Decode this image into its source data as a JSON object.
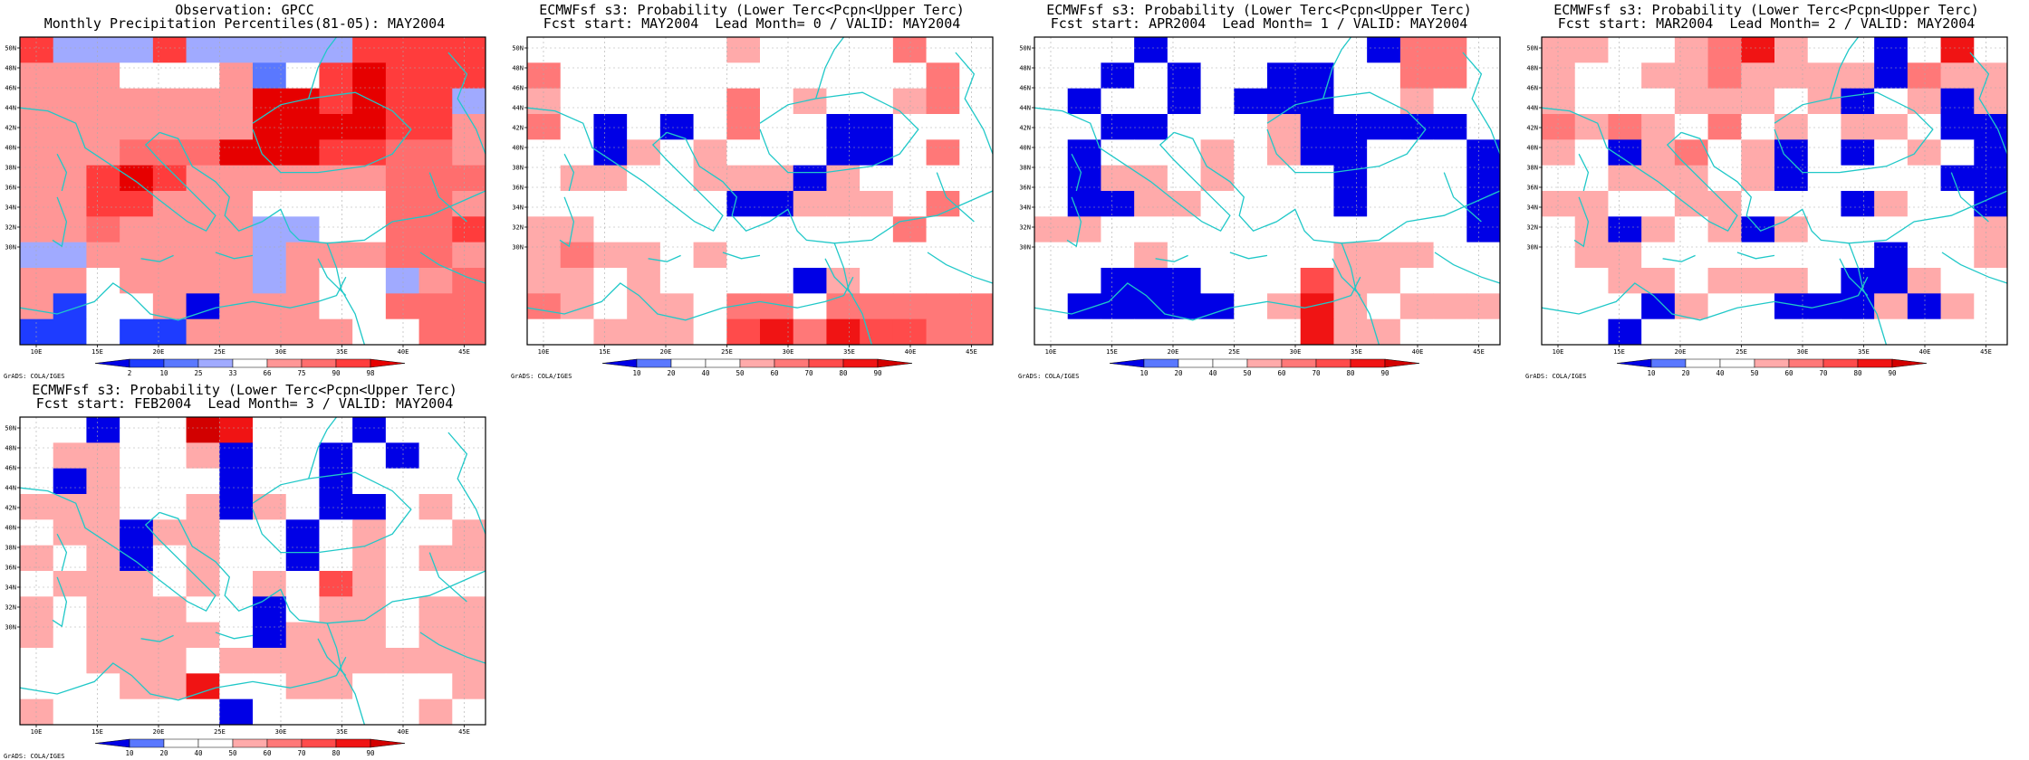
{
  "lat_labels": [
    "50N",
    "48N",
    "46N",
    "44N",
    "42N",
    "40N",
    "38N",
    "36N",
    "34N",
    "32N",
    "30N"
  ],
  "lon_labels": [
    "10E",
    "15E",
    "20E",
    "25E",
    "30E",
    "35E",
    "40E",
    "45E"
  ],
  "credit": "GrADS: COLA/IGES",
  "colors": {
    "coast": "#20c8c8",
    "grid": "#aaaaaa",
    "obs_levels": [
      "#0000e6",
      "#1e3cff",
      "#5a78ff",
      "#a0aaff",
      "#ffffff",
      "#ff9696",
      "#ff6e6e",
      "#ff3c3c",
      "#e60000"
    ],
    "prob_levels": [
      "#0000e6",
      "#5a78ff",
      "#ffffff",
      "#ffffff",
      "#ffaaaa",
      "#ff7878",
      "#ff4b4b",
      "#f01414",
      "#d20000"
    ]
  },
  "panels": [
    {
      "id": "obs",
      "title_line1": "Observation: GPCC",
      "title_line2": "Monthly Precipitation Percentiles(81-05): MAY2004",
      "colorbar_labels": [
        "2",
        "10",
        "25",
        "33",
        "66",
        "75",
        "90",
        "98"
      ],
      "grid_rows": [
        "73337333337777",
        "55544452478777",
        "55555558878773",
        "55555558888775",
        "55566688877665",
        "55787555555666",
        "55775554444665",
        "55655553344667",
        "33555553555665",
        "55455553544356",
        "51445055544666",
        "11411555554466"
      ]
    },
    {
      "id": "lead0",
      "title_line1": "ECMWFsf s3: Probability (Lower Terc<Pcpn<Upper Terc)",
      "title_line2": "Fcst start: MAY2004  Lead Month= 0 / VALID: MAY2004",
      "colorbar_labels": [
        "10",
        "20",
        "40",
        "50",
        "60",
        "70",
        "80",
        "90"
      ],
      "grid_rows": [
        "33232243323533",
        "53332333333353",
        "43332353422453",
        "52020253300233",
        "33043433300353",
        "34432444043333",
        "33333300444353",
        "44332233332533",
        "45443433233333",
        "44343333043333",
        "54344355355555",
        "33444367576655"
      ]
    },
    {
      "id": "lead1",
      "title_line1": "ECMWFsf s3: Probability (Lower Terc<Pcpn<Upper Terc)",
      "title_line2": "Fcst start: APR2004  Lead Month= 1 / VALID: MAY2004",
      "colorbar_labels": [
        "10",
        "20",
        "40",
        "50",
        "60",
        "70",
        "80",
        "90"
      ],
      "grid_rows": [
        "33303333330553",
        "33030330033553",
        "30330300033433",
        "33003334000003",
        "30233434003330",
        "30443433303330",
        "30044333303330",
        "44333333333330",
        "33343333344433",
        "33000333644333",
        "30000034743444",
        "33333333744333"
      ]
    },
    {
      "id": "lead2",
      "title_line1": "ECMWFsf s3: Probability (Lower Terc<Pcpn<Upper Terc)",
      "title_line2": "Fcst start: MAR2004  Lead Month= 2 / VALID: MAY2004",
      "colorbar_labels": [
        "10",
        "20",
        "40",
        "50",
        "60",
        "70",
        "80",
        "90"
      ],
      "grid_rows": [
        "44334574330373",
        "43344544440544",
        "43334443403404",
        "54543534344300",
        "43045340303430",
        "33444340333300",
        "44334433304330",
        "34043404333334",
        "34433333330334",
        "33443444300433",
        "33304330004043",
        "33033333333333"
      ]
    },
    {
      "id": "lead3",
      "title_line1": "ECMWFsf s3: Probability (Lower Terc<Pcpn<Upper Terc)",
      "title_line2": "Fcst start: FEB2004  Lead Month= 3 / VALID: MAY2004",
      "colorbar_labels": [
        "10",
        "20",
        "40",
        "50",
        "60",
        "70",
        "80",
        "90"
      ],
      "grid_rows": [
        "33033873330333",
        "34433403303033",
        "30433303303333",
        "44433404300343",
        "34404433034334",
        "43403433034344",
        "34443434364333",
        "43444330344344",
        "43444430444344",
        "33444344444444",
        "33344733443334",
        "43333303333343"
      ]
    }
  ]
}
